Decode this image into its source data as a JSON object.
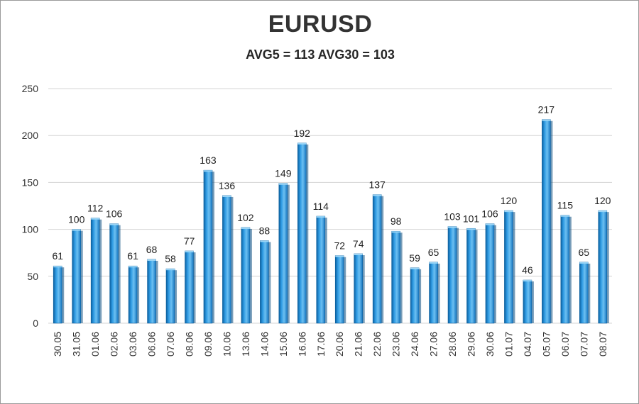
{
  "chart_data": {
    "type": "bar",
    "title": "EURUSD",
    "subtitle": "AVG5 = 113 AVG30 = 103",
    "categories": [
      "30.05",
      "31.05",
      "01.06",
      "02.06",
      "03.06",
      "06.06",
      "07.06",
      "08.06",
      "09.06",
      "10.06",
      "13.06",
      "14.06",
      "15.06",
      "16.06",
      "17.06",
      "20.06",
      "21.06",
      "22.06",
      "23.06",
      "24.06",
      "27.06",
      "28.06",
      "29.06",
      "30.06",
      "01.07",
      "04.07",
      "05.07",
      "06.07",
      "07.07",
      "08.07"
    ],
    "values": [
      61,
      100,
      112,
      106,
      61,
      68,
      58,
      77,
      163,
      136,
      102,
      88,
      149,
      192,
      114,
      72,
      74,
      137,
      98,
      59,
      65,
      103,
      101,
      106,
      120,
      46,
      217,
      115,
      65,
      120
    ],
    "ylim": [
      0,
      250
    ],
    "yticks": [
      0,
      50,
      100,
      150,
      200,
      250
    ],
    "grid": true,
    "legend": "none",
    "bar_color": "#1f8fd6"
  }
}
